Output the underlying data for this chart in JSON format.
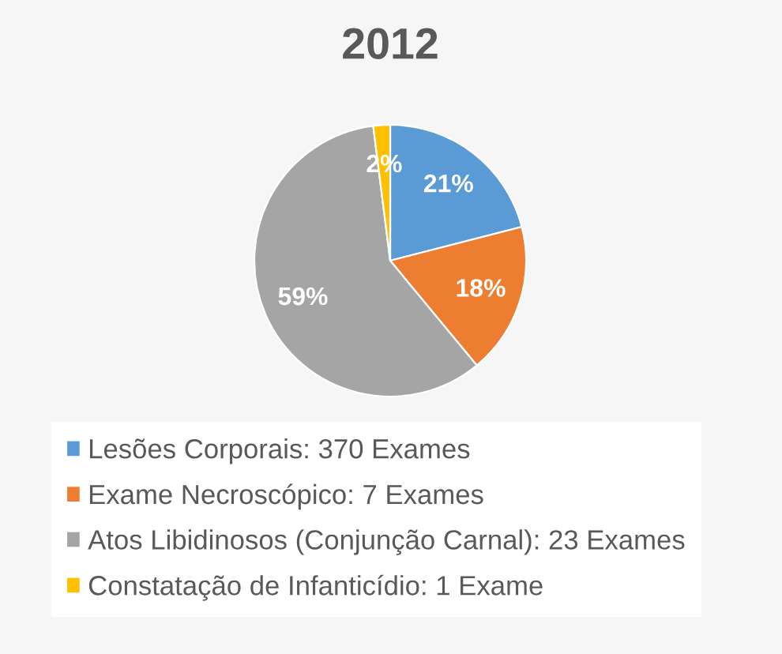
{
  "chart_data": {
    "type": "pie",
    "title": "2012",
    "categories": [
      "Lesões Corporais: 370 Exames",
      "Exame Necroscópico: 7 Exames",
      "Atos Libidinosos (Conjunção Carnal): 23 Exames",
      "Constatação de Infanticídio: 1 Exame"
    ],
    "values": [
      21,
      18,
      59,
      2
    ],
    "colors": [
      "#5b9bd5",
      "#ed7d31",
      "#a5a5a5",
      "#ffc000"
    ],
    "value_labels": [
      "21%",
      "18%",
      "59%",
      "2%"
    ],
    "legend": "bottom"
  }
}
